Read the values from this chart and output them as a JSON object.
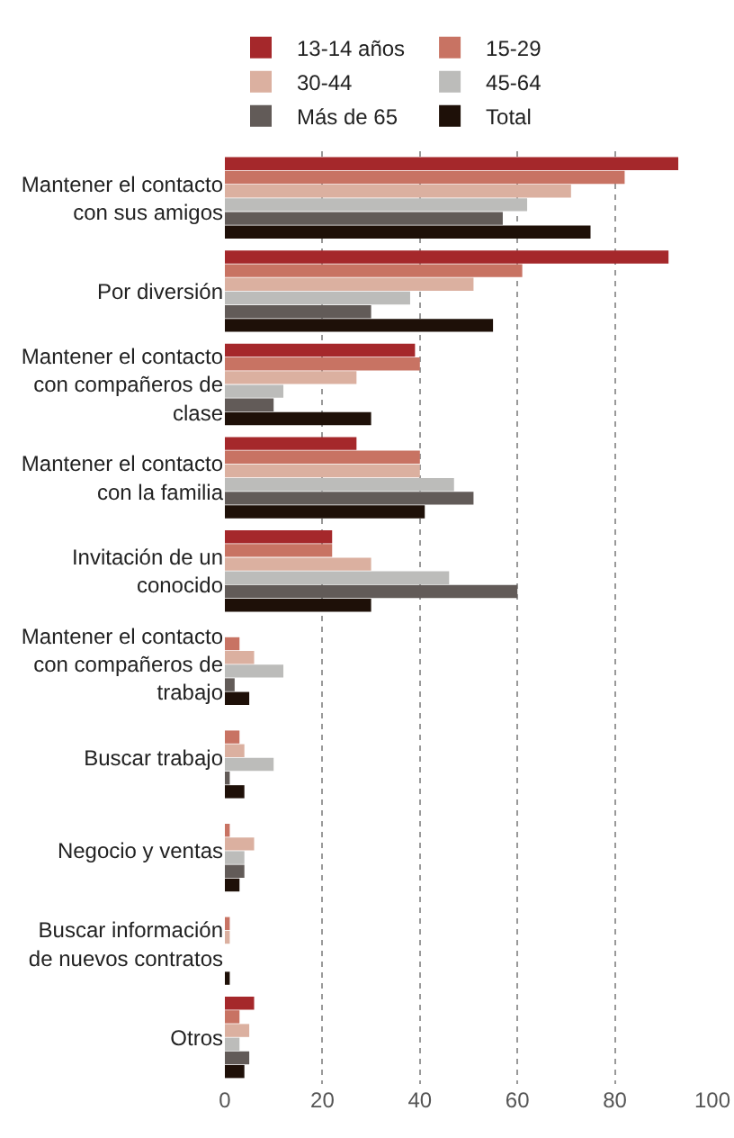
{
  "chart_data": {
    "type": "bar",
    "orientation": "horizontal",
    "categories": [
      "Mantener el contacto con sus amigos",
      "Por diversión",
      "Mantener el contacto con compañeros de clase",
      "Mantener el contacto con la familia",
      "Invitación de un conocido",
      "Mantener el contacto con compañeros de trabajo",
      "Buscar trabajo",
      "Negocio y ventas",
      "Buscar información de nuevos contratos",
      "Otros"
    ],
    "series": [
      {
        "name": "13-14 años",
        "color": "#a5282b",
        "values": [
          93,
          91,
          39,
          27,
          22,
          0,
          0,
          0,
          0,
          6
        ]
      },
      {
        "name": "15-29",
        "color": "#c87363",
        "values": [
          82,
          61,
          40,
          40,
          22,
          3,
          3,
          1,
          1,
          3
        ]
      },
      {
        "name": "30-44",
        "color": "#dbb0a0",
        "values": [
          71,
          51,
          27,
          40,
          30,
          6,
          4,
          6,
          1,
          5
        ]
      },
      {
        "name": "45-64",
        "color": "#bcbcba",
        "values": [
          62,
          38,
          12,
          47,
          46,
          12,
          10,
          4,
          0,
          3
        ]
      },
      {
        "name": "Más de 65",
        "color": "#625b58",
        "values": [
          57,
          30,
          10,
          51,
          60,
          2,
          1,
          4,
          0,
          5
        ]
      },
      {
        "name": "Total",
        "color": "#1e1008",
        "values": [
          75,
          55,
          30,
          41,
          30,
          5,
          4,
          3,
          1,
          4
        ]
      }
    ],
    "xlim": [
      0,
      100
    ],
    "xticks": [
      0,
      20,
      40,
      60,
      80,
      100
    ],
    "grid": "x",
    "legend": "top"
  }
}
